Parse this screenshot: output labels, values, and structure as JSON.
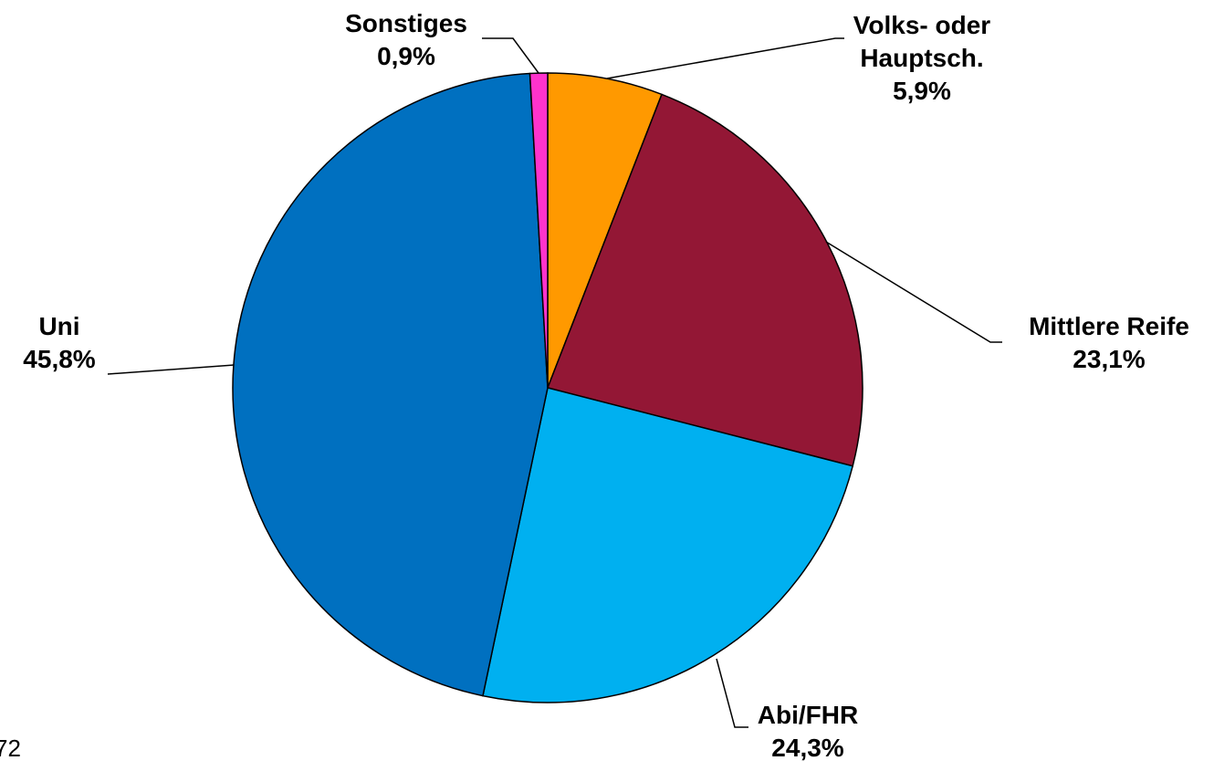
{
  "chart_data": {
    "type": "pie",
    "categories": [
      "Volks- oder Hauptsch.",
      "Mittlere Reife",
      "Abi/FHR",
      "Uni",
      "Sonstiges"
    ],
    "values": [
      5.9,
      23.1,
      24.3,
      45.8,
      0.9
    ],
    "value_labels": [
      "5,9%",
      "23,1%",
      "24,3%",
      "45,8%",
      "0,9%"
    ],
    "colors": [
      "#FF9900",
      "#931735",
      "#00B0F0",
      "#0070C0",
      "#FF33CC"
    ]
  },
  "page_number": "72"
}
